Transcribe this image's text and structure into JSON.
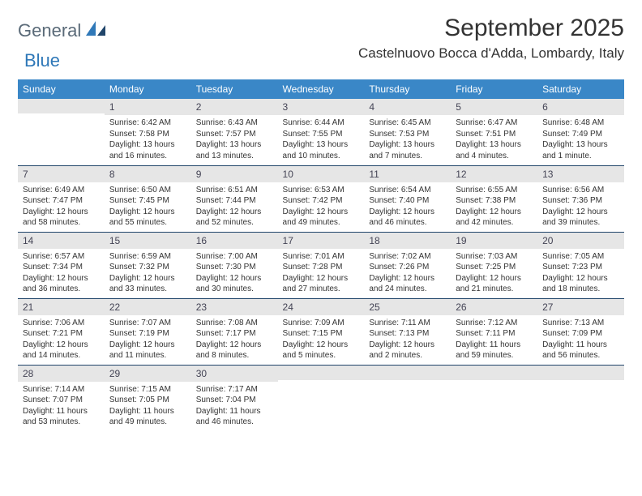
{
  "logo": {
    "text1": "General",
    "text2": "Blue",
    "accent": "#2f78b8",
    "muted": "#5a6a78"
  },
  "title": "September 2025",
  "location": "Castelnuovo Bocca d'Adda, Lombardy, Italy",
  "colors": {
    "header_bg": "#3a87c7",
    "header_text": "#ffffff",
    "daynum_bg": "#e6e6e6",
    "row_border": "#20456a",
    "text": "#333333"
  },
  "weekdays": [
    "Sunday",
    "Monday",
    "Tuesday",
    "Wednesday",
    "Thursday",
    "Friday",
    "Saturday"
  ],
  "weeks": [
    [
      {
        "n": "",
        "sunrise": "",
        "sunset": "",
        "daylight": ""
      },
      {
        "n": "1",
        "sunrise": "Sunrise: 6:42 AM",
        "sunset": "Sunset: 7:58 PM",
        "daylight": "Daylight: 13 hours and 16 minutes."
      },
      {
        "n": "2",
        "sunrise": "Sunrise: 6:43 AM",
        "sunset": "Sunset: 7:57 PM",
        "daylight": "Daylight: 13 hours and 13 minutes."
      },
      {
        "n": "3",
        "sunrise": "Sunrise: 6:44 AM",
        "sunset": "Sunset: 7:55 PM",
        "daylight": "Daylight: 13 hours and 10 minutes."
      },
      {
        "n": "4",
        "sunrise": "Sunrise: 6:45 AM",
        "sunset": "Sunset: 7:53 PM",
        "daylight": "Daylight: 13 hours and 7 minutes."
      },
      {
        "n": "5",
        "sunrise": "Sunrise: 6:47 AM",
        "sunset": "Sunset: 7:51 PM",
        "daylight": "Daylight: 13 hours and 4 minutes."
      },
      {
        "n": "6",
        "sunrise": "Sunrise: 6:48 AM",
        "sunset": "Sunset: 7:49 PM",
        "daylight": "Daylight: 13 hours and 1 minute."
      }
    ],
    [
      {
        "n": "7",
        "sunrise": "Sunrise: 6:49 AM",
        "sunset": "Sunset: 7:47 PM",
        "daylight": "Daylight: 12 hours and 58 minutes."
      },
      {
        "n": "8",
        "sunrise": "Sunrise: 6:50 AM",
        "sunset": "Sunset: 7:45 PM",
        "daylight": "Daylight: 12 hours and 55 minutes."
      },
      {
        "n": "9",
        "sunrise": "Sunrise: 6:51 AM",
        "sunset": "Sunset: 7:44 PM",
        "daylight": "Daylight: 12 hours and 52 minutes."
      },
      {
        "n": "10",
        "sunrise": "Sunrise: 6:53 AM",
        "sunset": "Sunset: 7:42 PM",
        "daylight": "Daylight: 12 hours and 49 minutes."
      },
      {
        "n": "11",
        "sunrise": "Sunrise: 6:54 AM",
        "sunset": "Sunset: 7:40 PM",
        "daylight": "Daylight: 12 hours and 46 minutes."
      },
      {
        "n": "12",
        "sunrise": "Sunrise: 6:55 AM",
        "sunset": "Sunset: 7:38 PM",
        "daylight": "Daylight: 12 hours and 42 minutes."
      },
      {
        "n": "13",
        "sunrise": "Sunrise: 6:56 AM",
        "sunset": "Sunset: 7:36 PM",
        "daylight": "Daylight: 12 hours and 39 minutes."
      }
    ],
    [
      {
        "n": "14",
        "sunrise": "Sunrise: 6:57 AM",
        "sunset": "Sunset: 7:34 PM",
        "daylight": "Daylight: 12 hours and 36 minutes."
      },
      {
        "n": "15",
        "sunrise": "Sunrise: 6:59 AM",
        "sunset": "Sunset: 7:32 PM",
        "daylight": "Daylight: 12 hours and 33 minutes."
      },
      {
        "n": "16",
        "sunrise": "Sunrise: 7:00 AM",
        "sunset": "Sunset: 7:30 PM",
        "daylight": "Daylight: 12 hours and 30 minutes."
      },
      {
        "n": "17",
        "sunrise": "Sunrise: 7:01 AM",
        "sunset": "Sunset: 7:28 PM",
        "daylight": "Daylight: 12 hours and 27 minutes."
      },
      {
        "n": "18",
        "sunrise": "Sunrise: 7:02 AM",
        "sunset": "Sunset: 7:26 PM",
        "daylight": "Daylight: 12 hours and 24 minutes."
      },
      {
        "n": "19",
        "sunrise": "Sunrise: 7:03 AM",
        "sunset": "Sunset: 7:25 PM",
        "daylight": "Daylight: 12 hours and 21 minutes."
      },
      {
        "n": "20",
        "sunrise": "Sunrise: 7:05 AM",
        "sunset": "Sunset: 7:23 PM",
        "daylight": "Daylight: 12 hours and 18 minutes."
      }
    ],
    [
      {
        "n": "21",
        "sunrise": "Sunrise: 7:06 AM",
        "sunset": "Sunset: 7:21 PM",
        "daylight": "Daylight: 12 hours and 14 minutes."
      },
      {
        "n": "22",
        "sunrise": "Sunrise: 7:07 AM",
        "sunset": "Sunset: 7:19 PM",
        "daylight": "Daylight: 12 hours and 11 minutes."
      },
      {
        "n": "23",
        "sunrise": "Sunrise: 7:08 AM",
        "sunset": "Sunset: 7:17 PM",
        "daylight": "Daylight: 12 hours and 8 minutes."
      },
      {
        "n": "24",
        "sunrise": "Sunrise: 7:09 AM",
        "sunset": "Sunset: 7:15 PM",
        "daylight": "Daylight: 12 hours and 5 minutes."
      },
      {
        "n": "25",
        "sunrise": "Sunrise: 7:11 AM",
        "sunset": "Sunset: 7:13 PM",
        "daylight": "Daylight: 12 hours and 2 minutes."
      },
      {
        "n": "26",
        "sunrise": "Sunrise: 7:12 AM",
        "sunset": "Sunset: 7:11 PM",
        "daylight": "Daylight: 11 hours and 59 minutes."
      },
      {
        "n": "27",
        "sunrise": "Sunrise: 7:13 AM",
        "sunset": "Sunset: 7:09 PM",
        "daylight": "Daylight: 11 hours and 56 minutes."
      }
    ],
    [
      {
        "n": "28",
        "sunrise": "Sunrise: 7:14 AM",
        "sunset": "Sunset: 7:07 PM",
        "daylight": "Daylight: 11 hours and 53 minutes."
      },
      {
        "n": "29",
        "sunrise": "Sunrise: 7:15 AM",
        "sunset": "Sunset: 7:05 PM",
        "daylight": "Daylight: 11 hours and 49 minutes."
      },
      {
        "n": "30",
        "sunrise": "Sunrise: 7:17 AM",
        "sunset": "Sunset: 7:04 PM",
        "daylight": "Daylight: 11 hours and 46 minutes."
      },
      {
        "n": "",
        "sunrise": "",
        "sunset": "",
        "daylight": ""
      },
      {
        "n": "",
        "sunrise": "",
        "sunset": "",
        "daylight": ""
      },
      {
        "n": "",
        "sunrise": "",
        "sunset": "",
        "daylight": ""
      },
      {
        "n": "",
        "sunrise": "",
        "sunset": "",
        "daylight": ""
      }
    ]
  ]
}
